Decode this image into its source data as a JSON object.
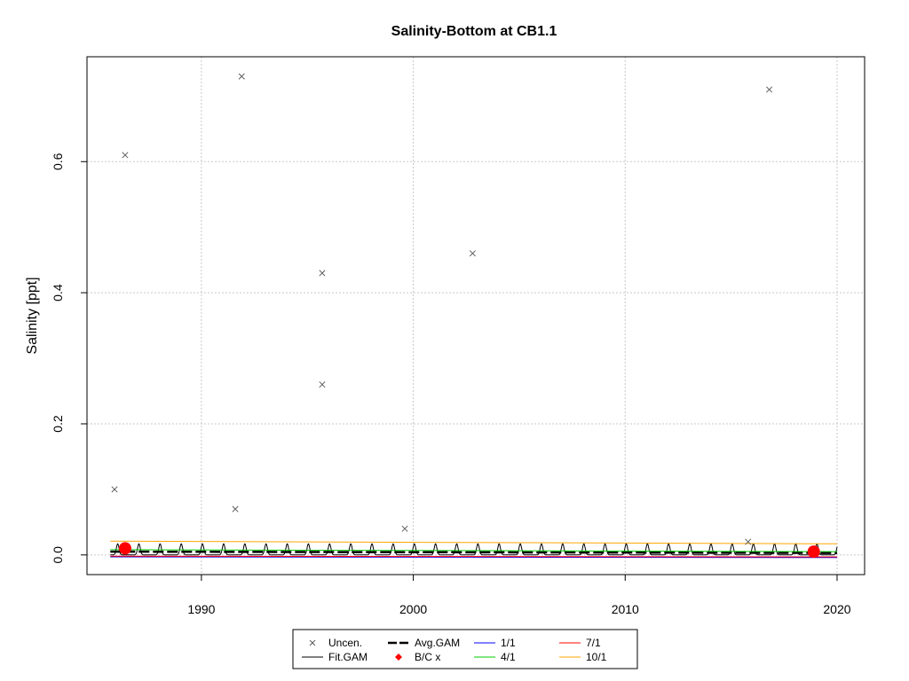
{
  "chart_data": {
    "type": "scatter",
    "title": "Salinity-Bottom at CB1.1",
    "xlabel": "",
    "ylabel": "Salinity [ppt]",
    "xlim": [
      1984.6,
      2021.3
    ],
    "ylim": [
      -0.03,
      0.76
    ],
    "x_ticks": [
      1990,
      2000,
      2010,
      2020
    ],
    "y_ticks": [
      0.0,
      0.2,
      0.4,
      0.6
    ],
    "y_tick_labels": [
      "0.0",
      "0.2",
      "0.4",
      "0.6"
    ],
    "grid": true,
    "legend_position": "bottom",
    "uncensored_points": [
      {
        "x": 1985.9,
        "y": 0.1
      },
      {
        "x": 1986.4,
        "y": 0.61
      },
      {
        "x": 1991.6,
        "y": 0.07
      },
      {
        "x": 1991.9,
        "y": 0.73
      },
      {
        "x": 1995.7,
        "y": 0.43
      },
      {
        "x": 1995.7,
        "y": 0.26
      },
      {
        "x": 1999.6,
        "y": 0.04
      },
      {
        "x": 2002.8,
        "y": 0.46
      },
      {
        "x": 2015.8,
        "y": 0.02
      },
      {
        "x": 2016.8,
        "y": 0.71
      }
    ],
    "bc_points": [
      {
        "x": 1986.4,
        "y": 0.01
      },
      {
        "x": 2018.9,
        "y": 0.005
      }
    ],
    "series": [
      {
        "name": "Avg.GAM",
        "color": "#000000",
        "style": "dashed-thick",
        "x": [
          1985.7,
          2020.0
        ],
        "y": [
          0.005,
          0.003
        ]
      },
      {
        "name": "1/1",
        "color": "#0000ff",
        "x": [
          1985.7,
          2020.0
        ],
        "y": [
          -0.003,
          -0.004
        ]
      },
      {
        "name": "4/1",
        "color": "#00cc00",
        "x": [
          1985.7,
          2020.0
        ],
        "y": [
          0.008,
          0.005
        ]
      },
      {
        "name": "7/1",
        "color": "#ff0000",
        "x": [
          1985.7,
          2020.0
        ],
        "y": [
          -0.002,
          -0.003
        ]
      },
      {
        "name": "10/1",
        "color": "#ffa500",
        "x": [
          1985.7,
          2020.0
        ],
        "y": [
          0.021,
          0.017
        ]
      }
    ],
    "fit_gam": {
      "name": "Fit.GAM",
      "color": "#000000",
      "baseline": 0.0,
      "peak": 0.017,
      "x_start": 1985.7,
      "x_end": 2020.0,
      "period": 1.0
    },
    "legend": {
      "items": [
        {
          "label": "Uncen.",
          "symbol": "x",
          "color": "#555555"
        },
        {
          "label": "Fit.GAM",
          "symbol": "line",
          "color": "#000000"
        },
        {
          "label": "Avg.GAM",
          "symbol": "dashed",
          "color": "#000000"
        },
        {
          "label": "B/C x",
          "symbol": "diamond",
          "color": "#ff0000"
        },
        {
          "label": "1/1",
          "symbol": "line",
          "color": "#0000ff"
        },
        {
          "label": "4/1",
          "symbol": "line",
          "color": "#00cc00"
        },
        {
          "label": "7/1",
          "symbol": "line",
          "color": "#ff0000"
        },
        {
          "label": "10/1",
          "symbol": "line",
          "color": "#ffa500"
        }
      ]
    }
  }
}
